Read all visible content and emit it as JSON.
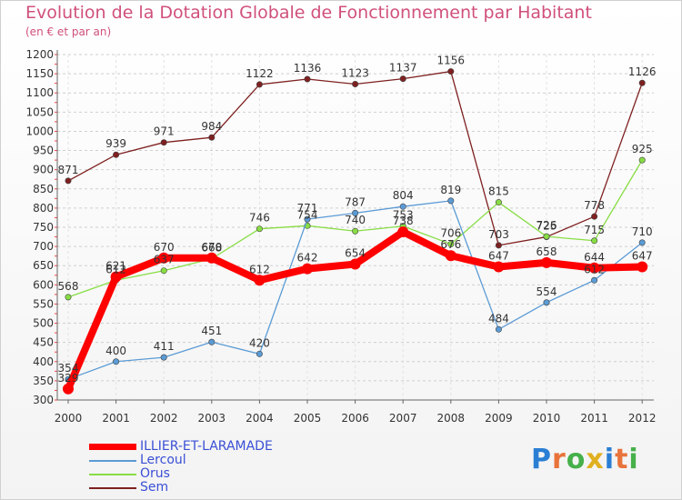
{
  "chart_data": {
    "type": "line",
    "title": "Evolution de la Dotation Globale de Fonctionnement par Habitant",
    "subtitle": "(en € et par an)",
    "xlabel": "",
    "ylabel": "",
    "x": [
      "2000",
      "2001",
      "2002",
      "2003",
      "2004",
      "2005",
      "2006",
      "2007",
      "2008",
      "2009",
      "2010",
      "2011",
      "2012"
    ],
    "ylim": [
      300,
      1200
    ],
    "yticks": [
      300,
      350,
      400,
      450,
      500,
      550,
      600,
      650,
      700,
      750,
      800,
      850,
      900,
      950,
      1000,
      1050,
      1100,
      1150,
      1200
    ],
    "ytick_labels": [
      "300",
      "350",
      "400",
      "450",
      "500",
      "550",
      "600",
      "650",
      "700",
      "750",
      "800",
      "850",
      "900",
      "950",
      "1000",
      "1050",
      "1100",
      "1150",
      "1200"
    ],
    "grid": "horizontal dashed",
    "series": [
      {
        "name": "ILLIER-ET-LARAMADE",
        "color": "#ff0000",
        "values": [
          329,
          621,
          670,
          670,
          612,
          642,
          654,
          738,
          676,
          647,
          658,
          644,
          647
        ]
      },
      {
        "name": "Lercoul",
        "color": "#5b9bd5",
        "values": [
          354,
          400,
          411,
          451,
          420,
          771,
          787,
          804,
          819,
          484,
          554,
          612,
          710
        ]
      },
      {
        "name": "Orus",
        "color": "#88dd44",
        "values": [
          568,
          612,
          637,
          668,
          746,
          754,
          740,
          753,
          706,
          815,
          726,
          715,
          925
        ]
      },
      {
        "name": "Sem",
        "color": "#7f2020",
        "values": [
          871,
          939,
          971,
          984,
          1122,
          1136,
          1123,
          1137,
          1156,
          703,
          725,
          778,
          1126
        ]
      }
    ]
  },
  "legend": {
    "items": [
      {
        "label": "ILLIER-ET-LARAMADE",
        "color": "#ff0000"
      },
      {
        "label": "Lercoul",
        "color": "#5b9bd5"
      },
      {
        "label": "Orus",
        "color": "#88dd44"
      },
      {
        "label": "Sem",
        "color": "#7f2020"
      }
    ]
  },
  "logo": {
    "text": "Proxiti",
    "letter_colors": [
      "#2a7fd4",
      "#e8743b",
      "#46b04a",
      "#e0b020",
      "#2a7fd4",
      "#e8743b",
      "#46b04a"
    ]
  }
}
